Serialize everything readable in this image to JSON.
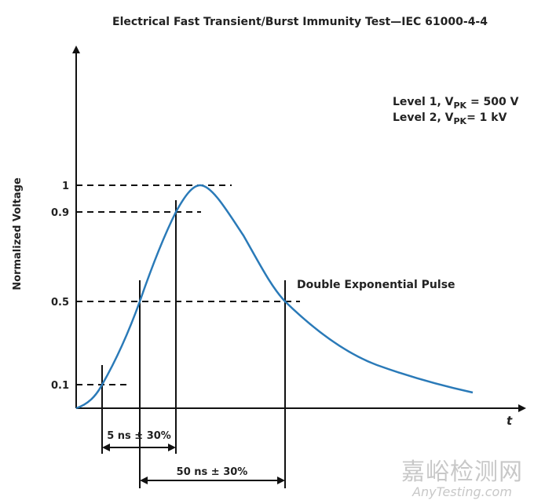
{
  "title": "Electrical Fast Transient/Burst Immunity Test—IEC 61000-4-4",
  "y_axis_label": "Normalized Voltage",
  "x_axis_label": "t",
  "y_ticks": [
    "1",
    "0.9",
    "0.5",
    "0.1"
  ],
  "levels": [
    {
      "prefix": "Level 1, V",
      "sub": "PK",
      "suffix": " = 500 V"
    },
    {
      "prefix": "Level 2, V",
      "sub": "PK",
      "suffix": "= 1 kV"
    }
  ],
  "curve_label": "Double Exponential Pulse",
  "rise_time_label": "5 ns ± 30%",
  "pulse_width_label": "50 ns ± 30%",
  "colors": {
    "curve": "#2a7ab8",
    "lines": "#111111"
  },
  "watermark": {
    "cn": "嘉峪检测网",
    "en": "AnyTesting.com"
  }
}
